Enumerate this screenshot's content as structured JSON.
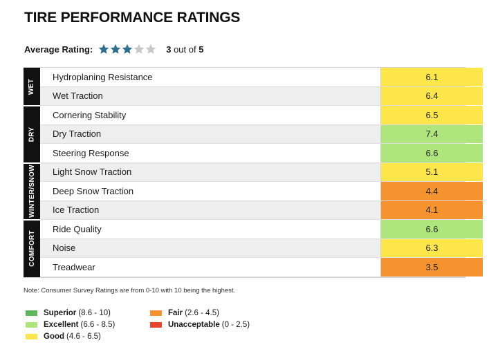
{
  "title": "TIRE PERFORMANCE RATINGS",
  "average": {
    "label": "Average Rating:",
    "stars_filled": 3,
    "stars_total": 5,
    "text_value": "3",
    "text_middle": "out of",
    "text_total": "5"
  },
  "colors": {
    "superior": "#5cb85c",
    "excellent": "#aee57c",
    "good": "#fde64a",
    "fair": "#f5942e",
    "unacceptable": "#e8452c",
    "star_filled": "#2f6f8f",
    "star_empty": "#c8c8c8",
    "group_bg": "#111111"
  },
  "chart_data": {
    "type": "table",
    "scale": [
      0,
      10
    ],
    "groups": [
      {
        "label": "WET",
        "rows": [
          {
            "label": "Hydroplaning Resistance",
            "value": "6.1",
            "rating": "good"
          },
          {
            "label": "Wet Traction",
            "value": "6.4",
            "rating": "good"
          }
        ]
      },
      {
        "label": "DRY",
        "rows": [
          {
            "label": "Cornering Stability",
            "value": "6.5",
            "rating": "good"
          },
          {
            "label": "Dry Traction",
            "value": "7.4",
            "rating": "excellent"
          },
          {
            "label": "Steering Response",
            "value": "6.6",
            "rating": "excellent"
          }
        ]
      },
      {
        "label": "WINTER/SNOW",
        "rows": [
          {
            "label": "Light Snow Traction",
            "value": "5.1",
            "rating": "good"
          },
          {
            "label": "Deep Snow Traction",
            "value": "4.4",
            "rating": "fair"
          },
          {
            "label": "Ice Traction",
            "value": "4.1",
            "rating": "fair"
          }
        ]
      },
      {
        "label": "COMFORT",
        "rows": [
          {
            "label": "Ride Quality",
            "value": "6.6",
            "rating": "excellent"
          },
          {
            "label": "Noise",
            "value": "6.3",
            "rating": "good"
          },
          {
            "label": "Treadwear",
            "value": "3.5",
            "rating": "fair"
          }
        ]
      }
    ]
  },
  "note": "Note: Consumer Survey Ratings are from 0-10 with 10 being the highest.",
  "legend": [
    {
      "key": "superior",
      "name": "Superior",
      "range": "(8.6 - 10)"
    },
    {
      "key": "excellent",
      "name": "Excellent",
      "range": "(6.6 - 8.5)"
    },
    {
      "key": "good",
      "name": "Good",
      "range": "(4.6 - 6.5)"
    },
    {
      "key": "fair",
      "name": "Fair",
      "range": "(2.6 - 4.5)"
    },
    {
      "key": "unacceptable",
      "name": "Unacceptable",
      "range": "(0 - 2.5)"
    }
  ]
}
